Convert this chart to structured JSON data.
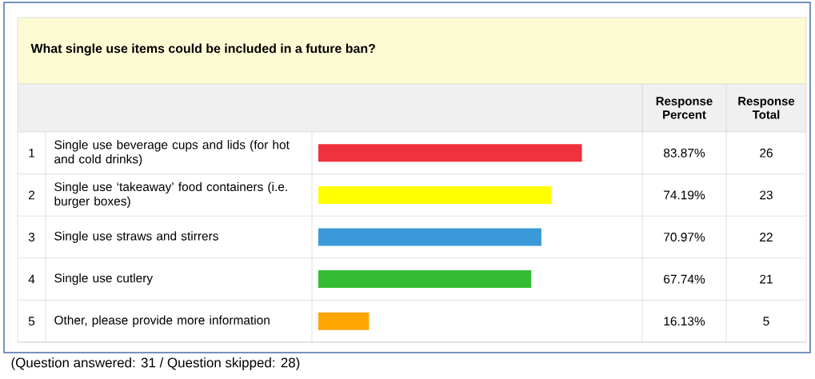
{
  "chart_data": {
    "type": "bar",
    "orientation": "horizontal",
    "title": "What single use items could be included in a future ban?",
    "categories": [
      "Single use beverage cups and lids (for hot and cold drinks)",
      "Single use ‘takeaway’ food containers (i.e. burger boxes)",
      "Single use straws and stirrers",
      "Single use cutlery",
      "Other, please provide more information"
    ],
    "values": [
      83.87,
      74.19,
      70.97,
      67.74,
      16.13
    ],
    "colors": [
      "#f0323c",
      "#ffff00",
      "#3a9ad9",
      "#33bb33",
      "#ffa500"
    ],
    "value_labels": [
      "83.87%",
      "74.19%",
      "70.97%",
      "67.74%",
      "16.13%"
    ],
    "annotations": [
      "Response Percent",
      "Response Total",
      "1",
      "2",
      "3",
      "4",
      "5",
      "26",
      "23",
      "22",
      "21",
      "5",
      "(Question answered: 31 / Question skipped: 28)"
    ]
  }
}
